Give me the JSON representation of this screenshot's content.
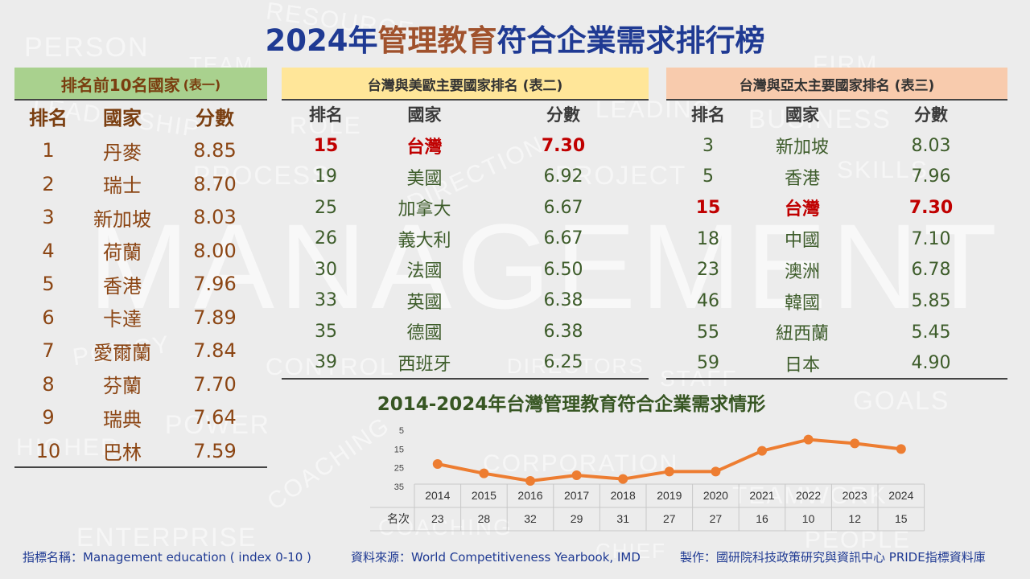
{
  "title": {
    "pre": "2024年",
    "highlight": "管理教育",
    "post": "符合企業需求排行榜"
  },
  "background_words": [
    "PERSON",
    "TEAM",
    "RESOURCE",
    "FIRM",
    "ROLE",
    "LEADERSHIP",
    "PROCESS",
    "DIRECTION",
    "PROJECT",
    "LEADING",
    "BUSINESS",
    "SKILLS",
    "MANAGEMENT",
    "POLICY",
    "CONTROL",
    "DIRECTORS",
    "STAFF",
    "GOALS",
    "POWER",
    "COACHING",
    "CORPORATION",
    "COACHING",
    "TEAMWORK",
    "HIGHER",
    "ENTERPRISE",
    "CHIEF",
    "PEOPLE"
  ],
  "colors": {
    "title_blue": "#1f3a93",
    "highlight_brown": "#a0522d",
    "panel1_bg": "#a9d18e",
    "panel2_bg": "#ffe699",
    "panel3_bg": "#f8cbad",
    "taiwan_red": "#c00000",
    "line_orange": "#ed7d31"
  },
  "table1": {
    "title": "排名前10名國家",
    "title_suffix": "(表一)",
    "headers": [
      "排名",
      "國家",
      "分數"
    ],
    "rows": [
      [
        "1",
        "丹麥",
        "8.85"
      ],
      [
        "2",
        "瑞士",
        "8.70"
      ],
      [
        "3",
        "新加坡",
        "8.03"
      ],
      [
        "4",
        "荷蘭",
        "8.00"
      ],
      [
        "5",
        "香港",
        "7.96"
      ],
      [
        "6",
        "卡達",
        "7.89"
      ],
      [
        "7",
        "愛爾蘭",
        "7.84"
      ],
      [
        "8",
        "芬蘭",
        "7.70"
      ],
      [
        "9",
        "瑞典",
        "7.64"
      ],
      [
        "10",
        "巴林",
        "7.59"
      ]
    ]
  },
  "table2": {
    "title": "台灣與美歐主要國家排名 (表二)",
    "headers": [
      "排名",
      "國家",
      "分數"
    ],
    "rows": [
      [
        "15",
        "台灣",
        "7.30"
      ],
      [
        "19",
        "美國",
        "6.92"
      ],
      [
        "25",
        "加拿大",
        "6.67"
      ],
      [
        "26",
        "義大利",
        "6.67"
      ],
      [
        "30",
        "法國",
        "6.50"
      ],
      [
        "33",
        "英國",
        "6.38"
      ],
      [
        "35",
        "德國",
        "6.38"
      ],
      [
        "39",
        "西班牙",
        "6.25"
      ]
    ],
    "highlight_row": 0
  },
  "table3": {
    "title": "台灣與亞太主要國家排名 (表三)",
    "headers": [
      "排名",
      "國家",
      "分數"
    ],
    "rows": [
      [
        "3",
        "新加坡",
        "8.03"
      ],
      [
        "5",
        "香港",
        "7.96"
      ],
      [
        "15",
        "台灣",
        "7.30"
      ],
      [
        "18",
        "中國",
        "7.10"
      ],
      [
        "23",
        "澳洲",
        "6.78"
      ],
      [
        "46",
        "韓國",
        "5.85"
      ],
      [
        "55",
        "紐西蘭",
        "5.45"
      ],
      [
        "59",
        "日本",
        "4.90"
      ]
    ],
    "highlight_row": 2
  },
  "chart_data": {
    "type": "line",
    "title": "2014-2024年台灣管理教育符合企業需求情形",
    "x": [
      "2014",
      "2015",
      "2016",
      "2017",
      "2018",
      "2019",
      "2020",
      "2021",
      "2022",
      "2023",
      "2024"
    ],
    "series": [
      {
        "name": "名次",
        "values": [
          23,
          28,
          32,
          29,
          31,
          27,
          27,
          16,
          10,
          12,
          15
        ]
      }
    ],
    "y_ticks": [
      "5",
      "15",
      "25",
      "35"
    ],
    "ylim": [
      5,
      35
    ],
    "y_inverted": true,
    "table_row_label": "名次",
    "grid": false,
    "color": "#ed7d31"
  },
  "footer": {
    "indicator": "指標名稱：Management education ( index 0-10 )",
    "source": "資料來源：World Competitiveness Yearbook, IMD",
    "producer": "製作：國研院科技政策研究與資訊中心 PRIDE指標資料庫"
  }
}
